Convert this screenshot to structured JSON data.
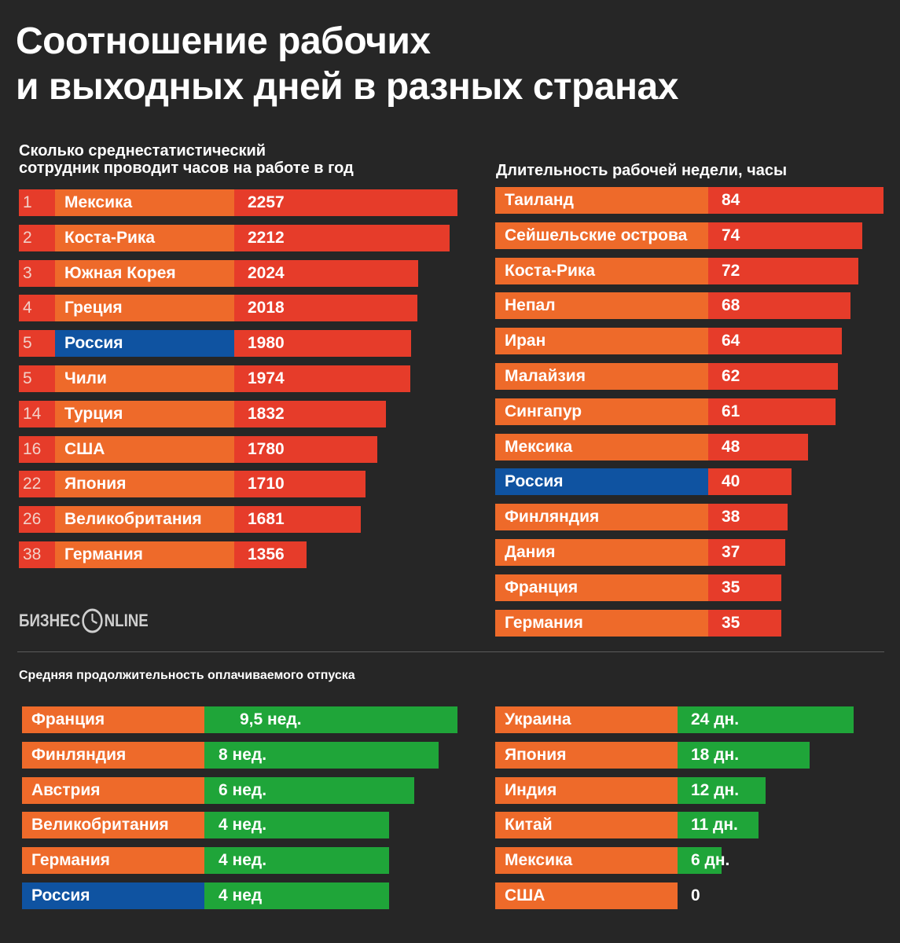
{
  "title_line1": "Соотношение рабочих",
  "title_line2": "и выходных дней в разных странах",
  "logo": {
    "left": "БИЗНЕС",
    "right": "NLINE"
  },
  "colors": {
    "background": "#262626",
    "orange": "#ee6a2a",
    "red": "#e63c2a",
    "blue": "#0f53a1",
    "green": "#1fa539"
  },
  "chart_data": [
    {
      "type": "bar",
      "title": "Сколько среднестатистический сотрудник проводит часов на работе в год",
      "title_lines": [
        "Сколько среднестатистический",
        "сотрудник проводит часов на работе в год"
      ],
      "ranks": [
        "1",
        "2",
        "3",
        "4",
        "5",
        "5",
        "14",
        "16",
        "22",
        "26",
        "38"
      ],
      "categories": [
        "Мексика",
        "Коста-Рика",
        "Южная Корея",
        "Греция",
        "Россия",
        "Чили",
        "Турция",
        "США",
        "Япония",
        "Великобритания",
        "Германия"
      ],
      "values": [
        2257,
        2212,
        2024,
        2018,
        1980,
        1974,
        1832,
        1780,
        1710,
        1681,
        1356
      ],
      "value_labels": [
        "2257",
        "2212",
        "2024",
        "2018",
        "1980",
        "1974",
        "1832",
        "1780",
        "1710",
        "1681",
        "1356"
      ],
      "highlight": "Россия",
      "xlim": [
        0,
        2257
      ]
    },
    {
      "type": "bar",
      "title": "Длительность рабочей недели, часы",
      "categories": [
        "Таиланд",
        "Сейшельские острова",
        "Коста-Рика",
        "Непал",
        "Иран",
        "Малайзия",
        "Сингапур",
        "Мексика",
        "Россия",
        "Финляндия",
        "Дания",
        "Франция",
        "Германия"
      ],
      "values": [
        84,
        74,
        72,
        68,
        64,
        62,
        61,
        48,
        40,
        38,
        37,
        35,
        35
      ],
      "value_labels": [
        "84",
        "74",
        "72",
        "68",
        "64",
        "62",
        "61",
        "48",
        "40",
        "38",
        "37",
        "35",
        "35"
      ],
      "highlight": "Россия",
      "xlim": [
        0,
        84
      ]
    },
    {
      "type": "bar",
      "title": "Средняя продолжительность оплачиваемого отпуска",
      "categories": [
        "Франция",
        "Финляндия",
        "Австрия",
        "Великобритания",
        "Германия",
        "Россия"
      ],
      "values": [
        9.5,
        8,
        6,
        4,
        4,
        4
      ],
      "value_labels": [
        "9,5 нед.",
        "8 нед.",
        "6 нед.",
        "4 нед.",
        "4 нед.",
        "4 нед"
      ],
      "unit": "недели",
      "highlight": "Россия",
      "xlim": [
        0,
        9.5
      ]
    },
    {
      "type": "bar",
      "title": "",
      "categories": [
        "Украина",
        "Япония",
        "Индия",
        "Китай",
        "Мексика",
        "США"
      ],
      "values": [
        24,
        18,
        12,
        11,
        6,
        0
      ],
      "value_labels": [
        "24 дн.",
        "18 дн.",
        "12 дн.",
        "11 дн.",
        "6 дн.",
        "0"
      ],
      "unit": "дни",
      "xlim": [
        0,
        24
      ]
    }
  ]
}
